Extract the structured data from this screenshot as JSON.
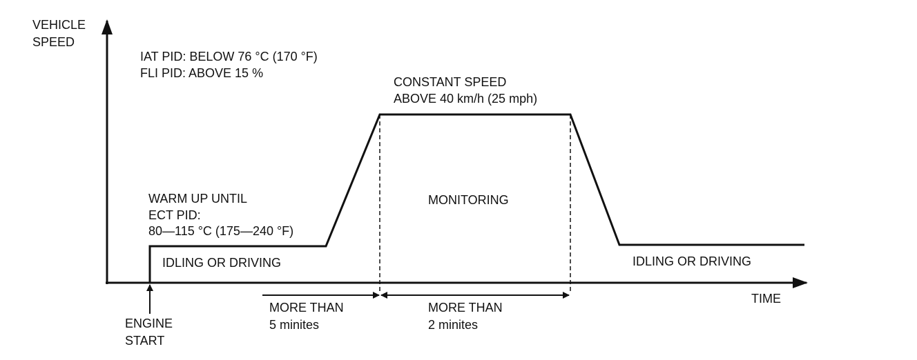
{
  "axes": {
    "y_label": [
      "VEHICLE",
      "SPEED"
    ],
    "x_label": "TIME"
  },
  "conditions": [
    "IAT PID: BELOW 76 °C (170 °F)",
    "FLI PID: ABOVE 15 %"
  ],
  "constant_speed": [
    "CONSTANT SPEED",
    "ABOVE 40 km/h (25 mph)"
  ],
  "warm_up": [
    "WARM UP UNTIL",
    "ECT PID:",
    "80—115 °C (175—240 °F)"
  ],
  "phases": {
    "idle_start": "IDLING OR DRIVING",
    "monitoring": "MONITORING",
    "idle_end": "IDLING OR DRIVING"
  },
  "durations": [
    [
      "MORE THAN",
      "5 minites"
    ],
    [
      "MORE THAN",
      "2 minites"
    ]
  ],
  "engine_start": [
    "ENGINE",
    "START"
  ]
}
